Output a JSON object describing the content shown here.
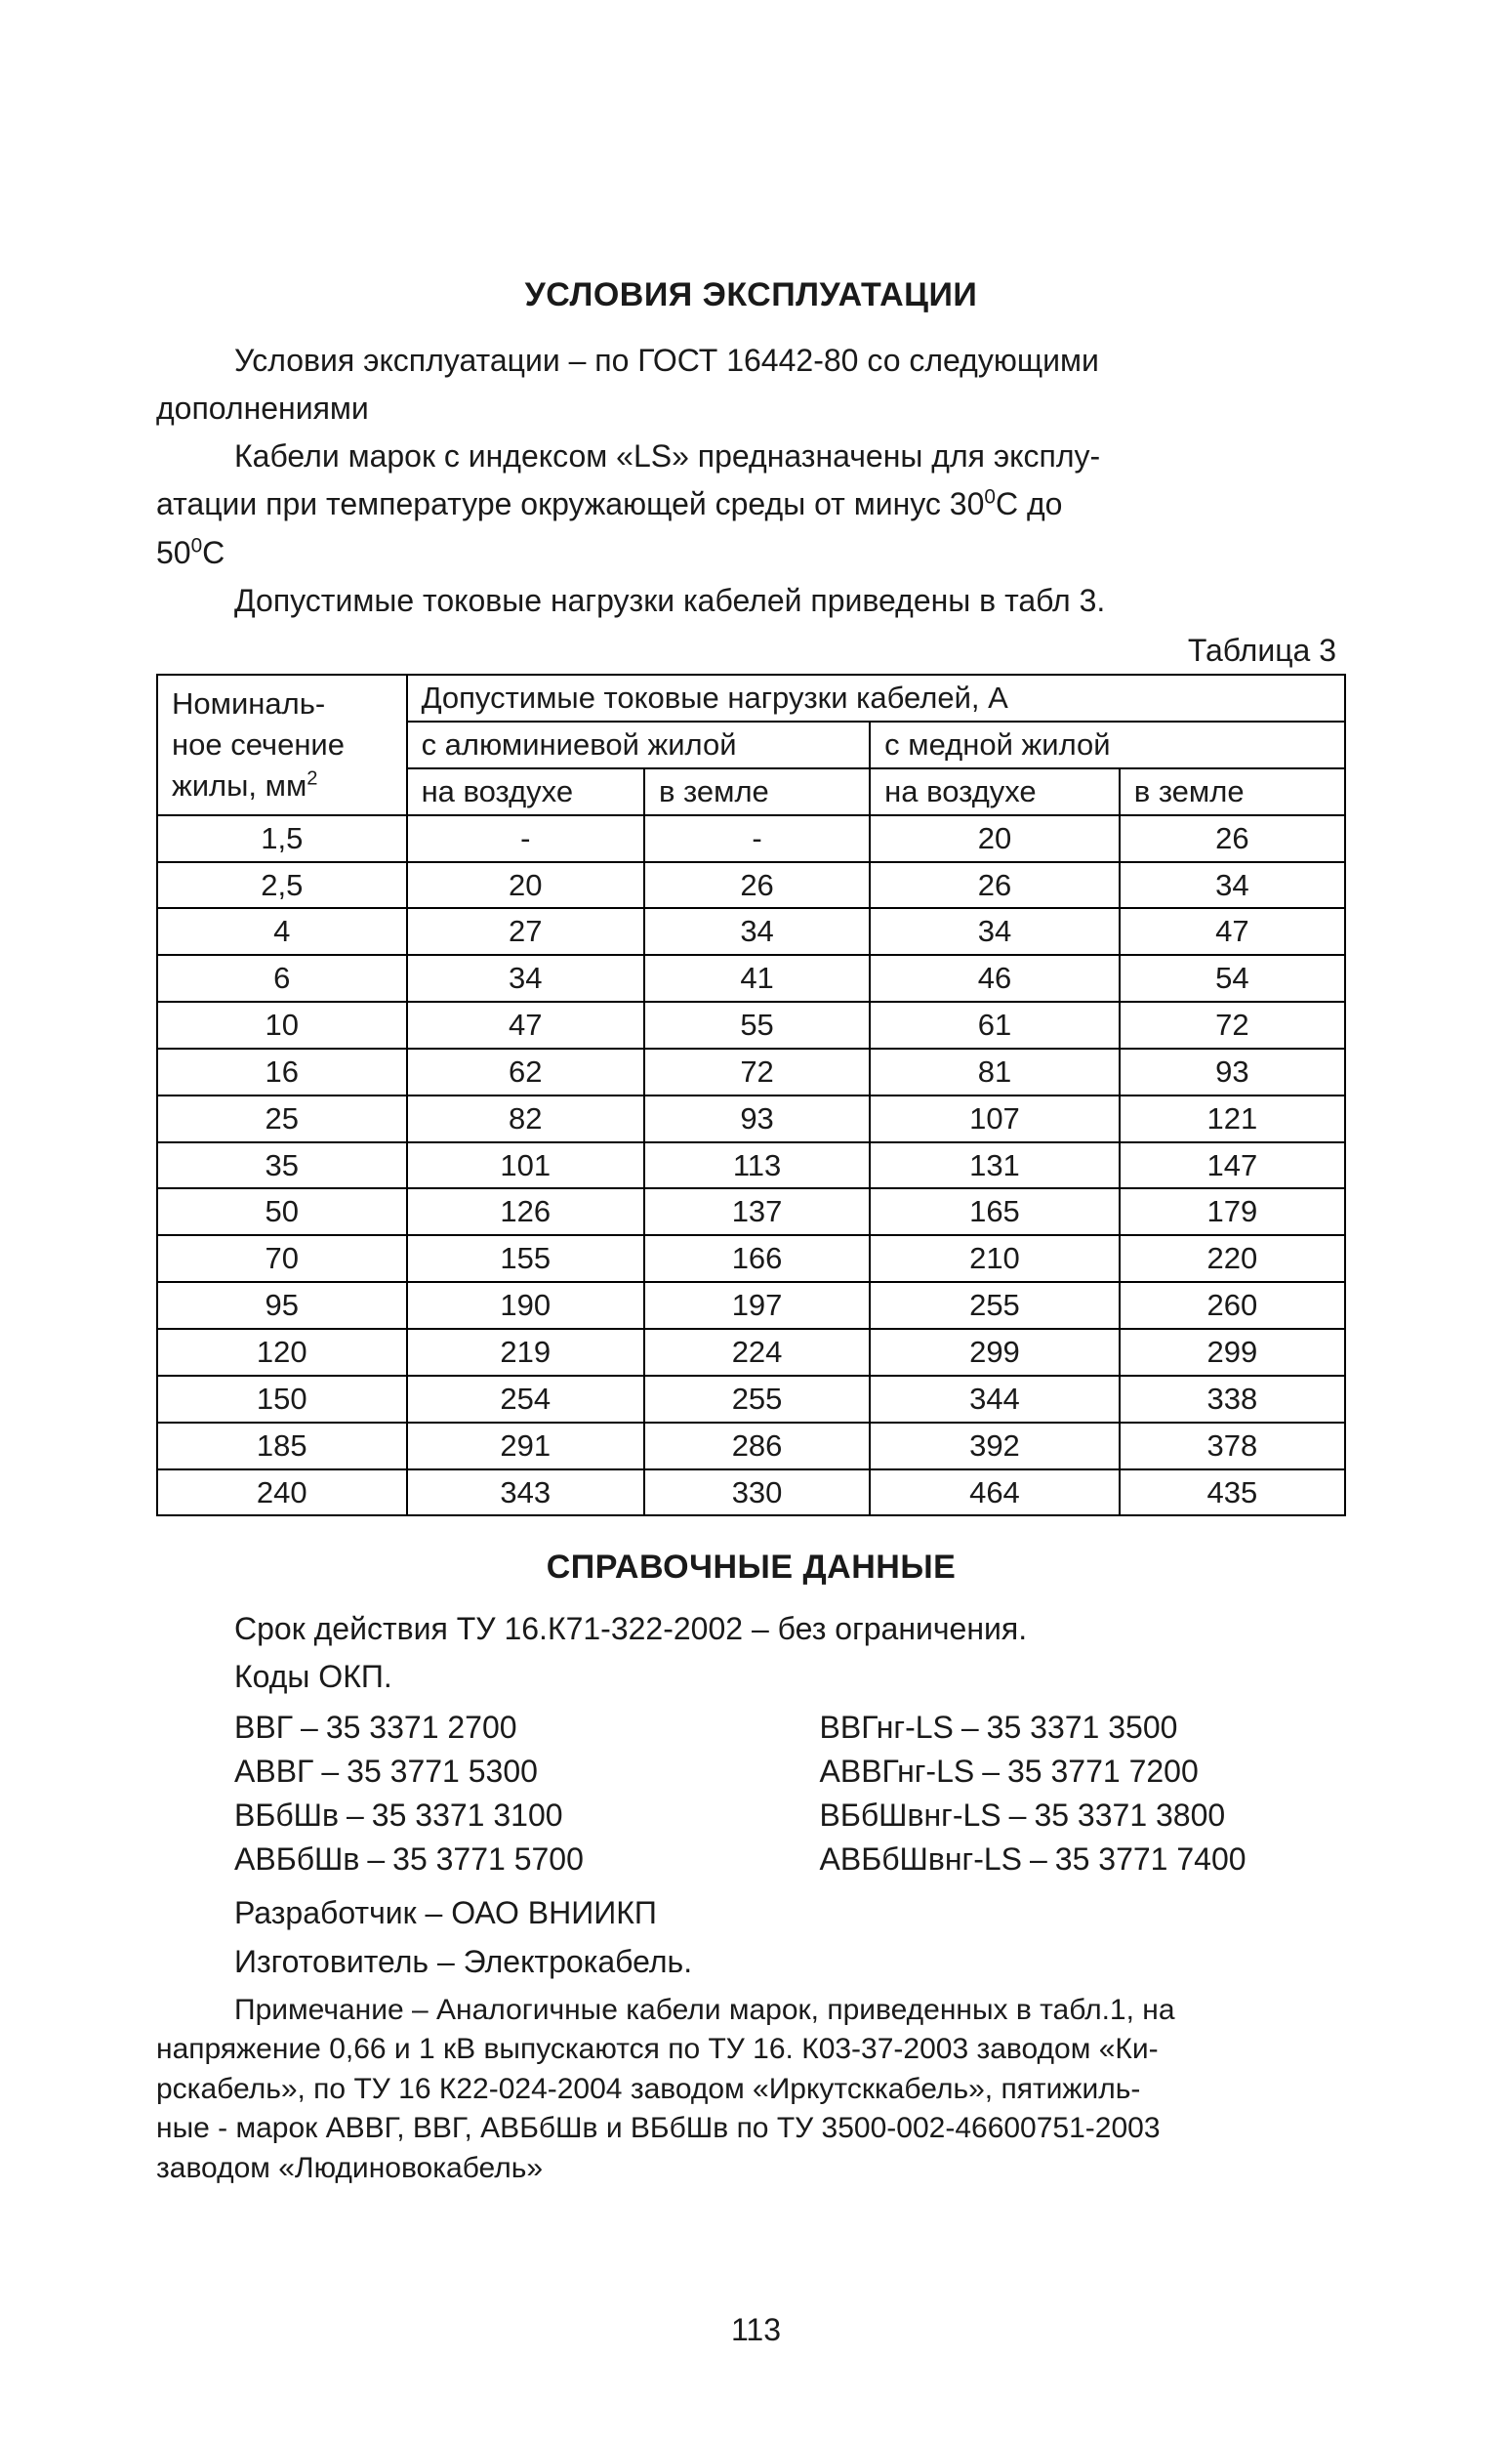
{
  "heading1": "УСЛОВИЯ ЭКСПЛУАТАЦИИ",
  "para1a": "Условия эксплуатации – по ГОСТ 16442-80 со следующими",
  "para1b": "дополнениями",
  "para2a": "Кабели марок с индексом «LS»  предназначены для эксплу-",
  "para2b_pre": "атации при температуре окружающей среды от минус 30",
  "para2b_sup": "0",
  "para2b_mid": "С до",
  "para2c_pre": "50",
  "para2c_sup": "0",
  "para2c_post": "С",
  "para3": "Допустимые токовые нагрузки кабелей приведены в табл  3.",
  "tableLabel": "Таблица 3",
  "table": {
    "colHeaderMainTop": "Допустимые токовые нагрузки кабелей, А",
    "colHeaderLeft_l1": "Номиналь-",
    "colHeaderLeft_l2": "ное сечение",
    "colHeaderLeft_l3_pre": "жилы, мм",
    "colHeaderLeft_l3_sup": "2",
    "groupAl": "с алюминиевой жилой",
    "groupCu": "с медной жилой",
    "sub_air": "на воздухе",
    "sub_ground": "в земле",
    "rows": [
      {
        "s": "1,5",
        "a1": "-",
        "a2": "-",
        "c1": "20",
        "c2": "26"
      },
      {
        "s": "2,5",
        "a1": "20",
        "a2": "26",
        "c1": "26",
        "c2": "34"
      },
      {
        "s": "4",
        "a1": "27",
        "a2": "34",
        "c1": "34",
        "c2": "47"
      },
      {
        "s": "6",
        "a1": "34",
        "a2": "41",
        "c1": "46",
        "c2": "54"
      },
      {
        "s": "10",
        "a1": "47",
        "a2": "55",
        "c1": "61",
        "c2": "72"
      },
      {
        "s": "16",
        "a1": "62",
        "a2": "72",
        "c1": "81",
        "c2": "93"
      },
      {
        "s": "25",
        "a1": "82",
        "a2": "93",
        "c1": "107",
        "c2": "121"
      },
      {
        "s": "35",
        "a1": "101",
        "a2": "113",
        "c1": "131",
        "c2": "147"
      },
      {
        "s": "50",
        "a1": "126",
        "a2": "137",
        "c1": "165",
        "c2": "179"
      },
      {
        "s": "70",
        "a1": "155",
        "a2": "166",
        "c1": "210",
        "c2": "220"
      },
      {
        "s": "95",
        "a1": "190",
        "a2": "197",
        "c1": "255",
        "c2": "260"
      },
      {
        "s": "120",
        "a1": "219",
        "a2": "224",
        "c1": "299",
        "c2": "299"
      },
      {
        "s": "150",
        "a1": "254",
        "a2": "255",
        "c1": "344",
        "c2": "338"
      },
      {
        "s": "185",
        "a1": "291",
        "a2": "286",
        "c1": "392",
        "c2": "378"
      },
      {
        "s": "240",
        "a1": "343",
        "a2": "330",
        "c1": "464",
        "c2": "435"
      }
    ]
  },
  "heading2": "СПРАВОЧНЫЕ ДАННЫЕ",
  "ref1": "Срок действия ТУ 16.К71-322-2002 – без ограничения.",
  "okpLabel": "Коды ОКП.",
  "codesLeft": [
    {
      "name": "ВВГ",
      "val": "35 3371 2700"
    },
    {
      "name": "АВВГ",
      "val": "35 3771 5300"
    },
    {
      "name": "ВБбШв",
      "val": "35 3371 3100"
    },
    {
      "name": "АВБбШв",
      "val": "35 3771 5700"
    }
  ],
  "codesRight": [
    {
      "name": "ВВГнг-LS",
      "val": "35 3371 3500"
    },
    {
      "name": "АВВГнг-LS",
      "val": "35 3771 7200"
    },
    {
      "name": "ВБбШвнг-LS",
      "val": "35 3371 3800"
    },
    {
      "name": "АВБбШвнг-LS",
      "val": "35 3771 7400"
    }
  ],
  "dev": "Разработчик – ОАО ВНИИКП",
  "mfr": "Изготовитель – Электрокабель.",
  "note_l1": "Примечание – Аналогичные кабели марок, приведенных в табл.1, на",
  "note_l2": "напряжение 0,66 и 1 кВ выпускаются по ТУ 16. К03-37-2003 заводом «Ки-",
  "note_l3": "рскабель», по ТУ 16 К22-024-2004 заводом «Иркутсккабель», пятижиль-",
  "note_l4": "ные - марок АВВГ, ВВГ, АВБбШв и ВБбШв по ТУ 3500-002-46600751-2003",
  "note_l5": "заводом «Людиновокабель»",
  "pageNumber": "113",
  "dash": "–",
  "colors": {
    "text": "#1a1a1a",
    "bg": "#ffffff",
    "border": "#000000"
  }
}
